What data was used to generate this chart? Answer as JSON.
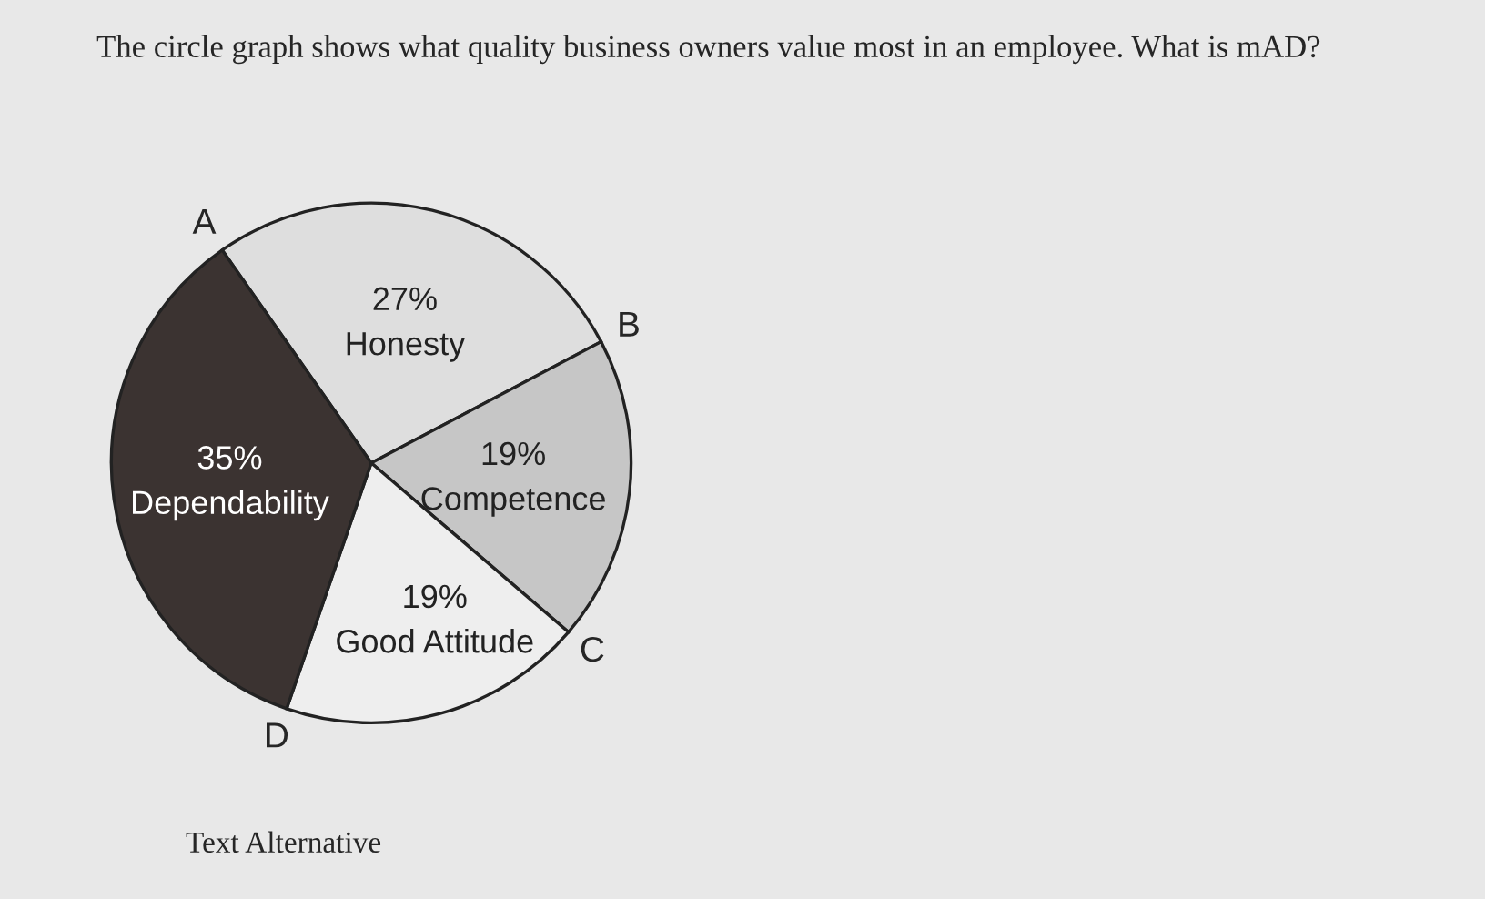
{
  "chart_data": {
    "type": "pie",
    "title": "The circle graph shows what quality business owners value most in an employee. What is mAD?",
    "categories": [
      "Honesty",
      "Competence",
      "Good Attitude",
      "Dependability"
    ],
    "values": [
      27,
      19,
      19,
      35
    ],
    "colors": [
      "#dedede",
      "#c6c6c6",
      "#eeeeee",
      "#3b3331"
    ],
    "value_labels": [
      "27%",
      "19%",
      "19%",
      "35%"
    ],
    "annotations": [
      "A",
      "B",
      "C",
      "D",
      "Text Alternative"
    ]
  }
}
